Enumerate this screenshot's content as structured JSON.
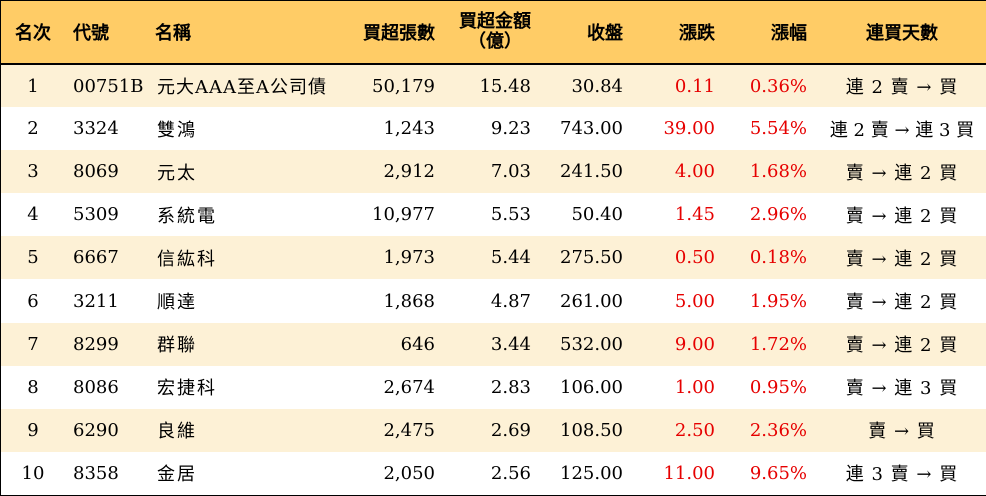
{
  "headers": {
    "rank": "名次",
    "code": "代號",
    "name": "名稱",
    "net_buy_lots": "買超張數",
    "net_buy_amount_line1": "買超金額",
    "net_buy_amount_line2": "（億）",
    "close": "收盤",
    "change": "漲跌",
    "change_pct": "漲幅",
    "streak": "連買天數"
  },
  "rows": [
    {
      "rank": "1",
      "code": "00751B",
      "name": "元大AAA至A公司債",
      "lots": "50,179",
      "amount": "15.48",
      "close": "30.84",
      "change": "0.11",
      "pct": "0.36%",
      "streak": "連 2 賣 → 買"
    },
    {
      "rank": "2",
      "code": "3324",
      "name": "雙鴻",
      "lots": "1,243",
      "amount": "9.23",
      "close": "743.00",
      "change": "39.00",
      "pct": "5.54%",
      "streak": "連 2 賣 → 連 3 買"
    },
    {
      "rank": "3",
      "code": "8069",
      "name": "元太",
      "lots": "2,912",
      "amount": "7.03",
      "close": "241.50",
      "change": "4.00",
      "pct": "1.68%",
      "streak": "賣 → 連 2 買"
    },
    {
      "rank": "4",
      "code": "5309",
      "name": "系統電",
      "lots": "10,977",
      "amount": "5.53",
      "close": "50.40",
      "change": "1.45",
      "pct": "2.96%",
      "streak": "賣 → 連 2 買"
    },
    {
      "rank": "5",
      "code": "6667",
      "name": "信紘科",
      "lots": "1,973",
      "amount": "5.44",
      "close": "275.50",
      "change": "0.50",
      "pct": "0.18%",
      "streak": "賣 → 連 2 買"
    },
    {
      "rank": "6",
      "code": "3211",
      "name": "順達",
      "lots": "1,868",
      "amount": "4.87",
      "close": "261.00",
      "change": "5.00",
      "pct": "1.95%",
      "streak": "賣 → 連 2 買"
    },
    {
      "rank": "7",
      "code": "8299",
      "name": "群聯",
      "lots": "646",
      "amount": "3.44",
      "close": "532.00",
      "change": "9.00",
      "pct": "1.72%",
      "streak": "賣 → 連 2 買"
    },
    {
      "rank": "8",
      "code": "8086",
      "name": "宏捷科",
      "lots": "2,674",
      "amount": "2.83",
      "close": "106.00",
      "change": "1.00",
      "pct": "0.95%",
      "streak": "賣 → 連 3 買"
    },
    {
      "rank": "9",
      "code": "6290",
      "name": "良維",
      "lots": "2,475",
      "amount": "2.69",
      "close": "108.50",
      "change": "2.50",
      "pct": "2.36%",
      "streak": "賣 → 買"
    },
    {
      "rank": "10",
      "code": "8358",
      "name": "金居",
      "lots": "2,050",
      "amount": "2.56",
      "close": "125.00",
      "change": "11.00",
      "pct": "9.65%",
      "streak": "連 3 賣 → 買"
    }
  ],
  "colors": {
    "header_bg": "#ffcc66",
    "stripe_bg": "#fdf1d6",
    "up_color": "#e60000"
  }
}
